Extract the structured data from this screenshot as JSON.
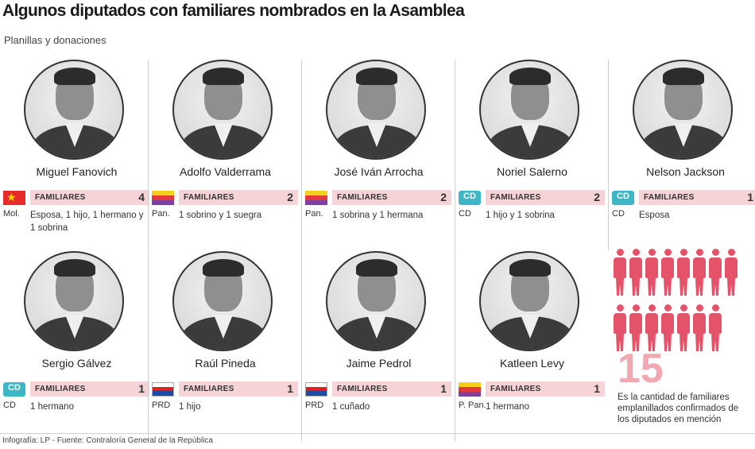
{
  "header": {
    "title": "Algunos diputados con familiares nombrados en la Asamblea",
    "subtitle": "Planillas y donaciones"
  },
  "familiares_label": "FAMILIARES",
  "deputies": [
    {
      "name": "Miguel Fanovich",
      "party": "Mol.",
      "party_icon": "molirena-flag-icon",
      "count": "4",
      "detail": "Esposa, 1 hijo, 1 hermano y 1 sobrina"
    },
    {
      "name": "Adolfo Valderrama",
      "party": "Pan.",
      "party_icon": "panamenista-flag-icon",
      "count": "2",
      "detail": "1 sobrino y 1 suegra"
    },
    {
      "name": "José Iván Arrocha",
      "party": "Pan.",
      "party_icon": "panamenista-flag-icon",
      "count": "2",
      "detail": "1 sobrina y 1 hermana"
    },
    {
      "name": "Noriel Salerno",
      "party": "CD",
      "party_icon": "cd-logo-icon",
      "count": "2",
      "detail": "1 hijo y 1 sobrina"
    },
    {
      "name": "Nelson Jackson",
      "party": "CD",
      "party_icon": "cd-logo-icon",
      "count": "1",
      "detail": "Esposa"
    },
    {
      "name": "Sergio Gálvez",
      "party": "CD",
      "party_icon": "cd-logo-icon",
      "count": "1",
      "detail": "1 hermano"
    },
    {
      "name": "Raúl Pineda",
      "party": "PRD",
      "party_icon": "prd-flag-icon",
      "count": "1",
      "detail": "1 hijo"
    },
    {
      "name": "Jaime Pedrol",
      "party": "PRD",
      "party_icon": "prd-flag-icon",
      "count": "1",
      "detail": "1 cuñado"
    },
    {
      "name": "Katleen Levy",
      "party": "P. Pan.",
      "party_icon": "panamenista-flag-icon",
      "count": "1",
      "detail": "1 hermano"
    }
  ],
  "cd_logo_text": "CD",
  "summary": {
    "total": "15",
    "caption": "Es la cantidad de familiares emplanillados confirmados de los diputados en mención",
    "figure_count": 15,
    "figure_color": "#e4536a"
  },
  "colors": {
    "bar": "#f6d3d6",
    "accent": "#e4536a"
  },
  "footer": {
    "source": "Infografía: LP - Fuente: Contraloría General de la República"
  }
}
